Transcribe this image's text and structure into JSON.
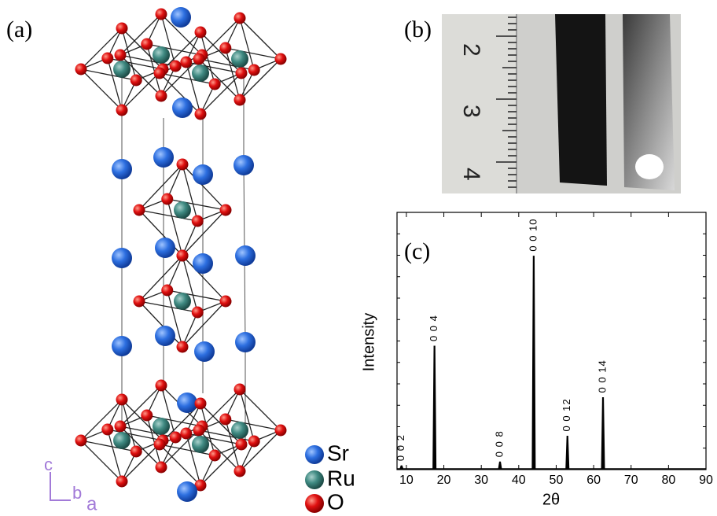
{
  "panels": {
    "a": {
      "label": "(a)",
      "legend": [
        "Sr",
        "Ru",
        "O"
      ],
      "axes": [
        "c",
        "b",
        "a"
      ]
    },
    "b": {
      "label": "(b)",
      "ruler": [
        "2",
        "3",
        "4"
      ]
    }
  },
  "chart_data": {
    "type": "spectrum",
    "label": "(c)",
    "xlabel": "2θ",
    "ylabel": "Intensity",
    "x": [
      8.7,
      17.5,
      35,
      44,
      53,
      62.5
    ],
    "values": [
      1.5,
      48,
      3,
      83,
      13,
      28
    ],
    "peak_labels": [
      "0 0 2",
      "0 0 4",
      "0 0 8",
      "0 0 10",
      "0 0 12",
      "0 0 14"
    ],
    "color": "#000000",
    "xlim": [
      7.5,
      90
    ],
    "xticks": [
      10,
      20,
      30,
      40,
      50,
      60,
      70,
      80,
      90
    ],
    "ylim": [
      0,
      100
    ]
  }
}
